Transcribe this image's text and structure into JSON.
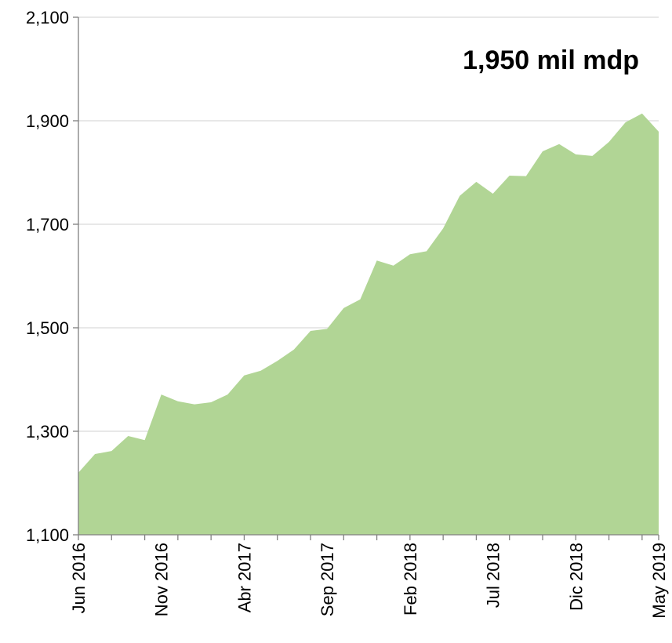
{
  "chart_data": {
    "type": "area",
    "annotation": "1,950 mil mdp",
    "categories": [
      "Jun 2016",
      null,
      null,
      null,
      null,
      "Nov 2016",
      null,
      null,
      null,
      null,
      "Abr 2017",
      null,
      null,
      null,
      null,
      "Sep 2017",
      null,
      null,
      null,
      null,
      "Feb 2018",
      null,
      null,
      null,
      null,
      "Jul 2018",
      null,
      null,
      null,
      null,
      "Dic 2018",
      null,
      null,
      null,
      null,
      "May 2019"
    ],
    "values": [
      1220,
      1256,
      1262,
      1291,
      1283,
      1371,
      1358,
      1352,
      1356,
      1371,
      1408,
      1417,
      1436,
      1458,
      1494,
      1498,
      1538,
      1555,
      1630,
      1620,
      1642,
      1648,
      1692,
      1755,
      1782,
      1759,
      1794,
      1793,
      1841,
      1855,
      1835,
      1832,
      1859,
      1897,
      1914,
      1879
    ],
    "color": "#b1d595",
    "ylim": [
      1100,
      2100
    ],
    "yticks": [
      {
        "value": 1100,
        "label": "1,100"
      },
      {
        "value": 1300,
        "label": "1,300"
      },
      {
        "value": 1500,
        "label": "1,500"
      },
      {
        "value": 1700,
        "label": "1,700"
      },
      {
        "value": 1900,
        "label": "1,900"
      },
      {
        "value": 2100,
        "label": "2,100"
      }
    ],
    "grid": true
  }
}
